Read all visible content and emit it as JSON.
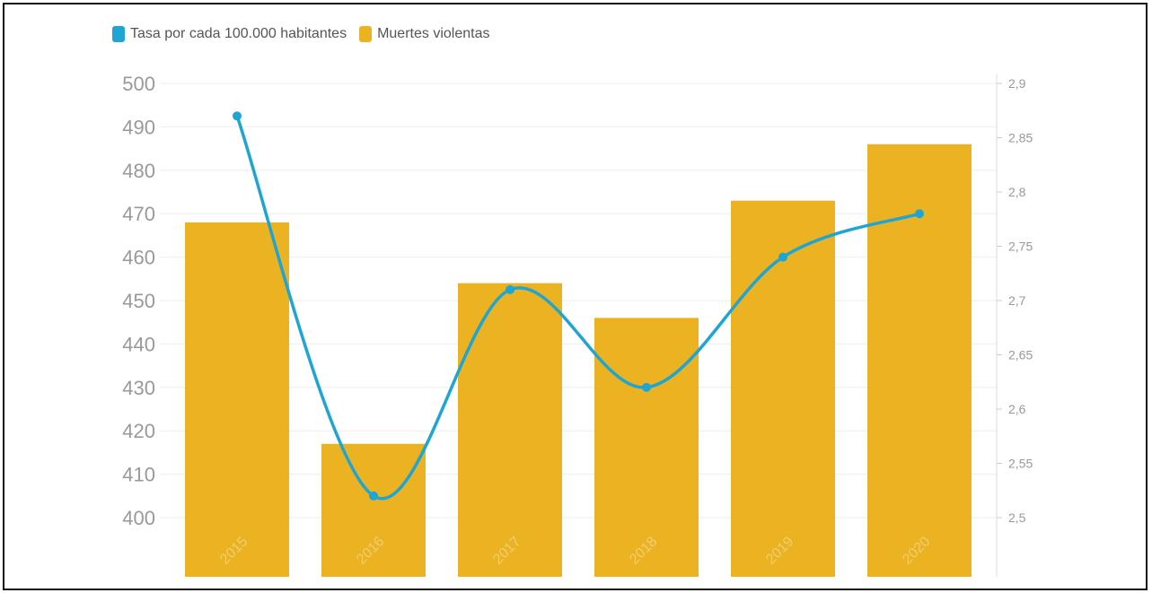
{
  "legend": {
    "rate_label": "Tasa por cada 100.000 habitantes",
    "deaths_label": "Muertes violentas"
  },
  "colors": {
    "bars": "#ebb222",
    "line": "#1ea5d4",
    "grid": "#eeeeee",
    "axis_text": "#999999"
  },
  "chart_data": {
    "type": "bar",
    "categories": [
      "2015",
      "2016",
      "2017",
      "2018",
      "2019",
      "2020"
    ],
    "series": [
      {
        "name": "Muertes violentas",
        "type": "bar",
        "axis": "left",
        "values": [
          468,
          417,
          454,
          446,
          473,
          486
        ]
      },
      {
        "name": "Tasa por cada 100.000 habitantes",
        "type": "line",
        "axis": "right",
        "smooth": true,
        "values": [
          2.87,
          2.52,
          2.71,
          2.62,
          2.74,
          2.78
        ]
      }
    ],
    "y_left": {
      "ylim": [
        400,
        500
      ],
      "ticks": [
        "400",
        "410",
        "420",
        "430",
        "440",
        "450",
        "460",
        "470",
        "480",
        "490",
        "500"
      ]
    },
    "y_right": {
      "ylim": [
        2.5,
        2.9
      ],
      "ticks": [
        "2,5",
        "2,55",
        "2,6",
        "2,65",
        "2,7",
        "2,75",
        "2,8",
        "2,85",
        "2,9"
      ]
    },
    "grid": true,
    "legend_position": "top-left"
  }
}
